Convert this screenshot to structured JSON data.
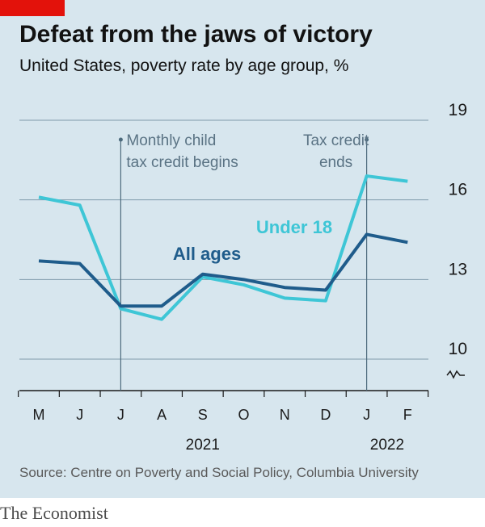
{
  "header": {
    "title": "Defeat from the jaws of victory",
    "subtitle": "United States, poverty rate by age group, %"
  },
  "source": "Source: Centre on Poverty and Social Policy, Columbia University",
  "brand": "The Economist",
  "colors": {
    "background": "#d7e6ee",
    "all_ages": "#1f5c8b",
    "under_18": "#3ec6d6",
    "brand_red": "#e3120b"
  },
  "chart_data": {
    "type": "line",
    "categories": [
      "M",
      "J",
      "J",
      "A",
      "S",
      "O",
      "N",
      "D",
      "J",
      "F"
    ],
    "year_labels": [
      {
        "label": "2021",
        "under_category_index": 4
      },
      {
        "label": "2022",
        "under_category_index": 8.5
      }
    ],
    "y_ticks": [
      "19",
      "16",
      "13",
      "10"
    ],
    "ylim": [
      10,
      19
    ],
    "y_axis_break": true,
    "grid": true,
    "series": [
      {
        "name": "All ages",
        "values": [
          13.7,
          13.6,
          12.0,
          12.0,
          13.2,
          13.0,
          12.7,
          12.6,
          14.7,
          14.4
        ]
      },
      {
        "name": "Under 18",
        "values": [
          16.1,
          15.8,
          11.9,
          11.5,
          13.1,
          12.8,
          12.3,
          12.2,
          16.9,
          16.7
        ]
      }
    ],
    "annotations": [
      {
        "lines": [
          "Monthly child",
          "tax credit begins"
        ],
        "at_category_index": 2
      },
      {
        "lines": [
          "Tax credit",
          "ends"
        ],
        "at_category_index": 8
      }
    ]
  }
}
